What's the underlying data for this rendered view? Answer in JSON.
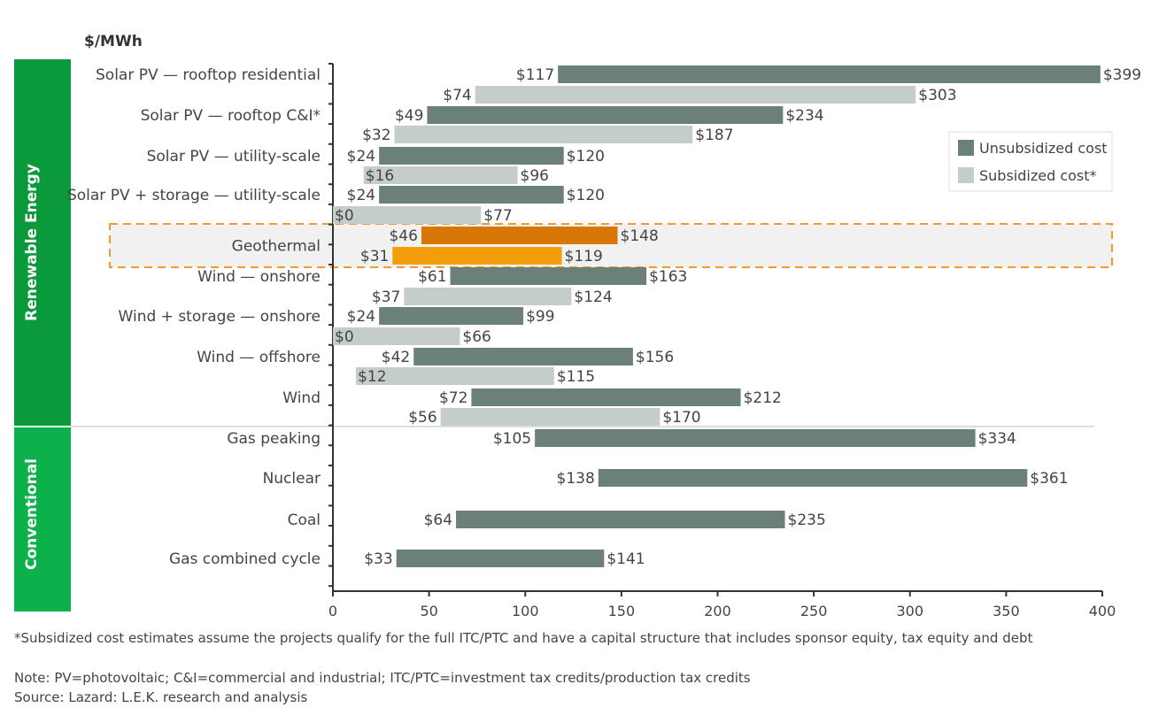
{
  "chart_data": {
    "type": "bar",
    "orientation": "horizontal-range",
    "ylabel": "$/MWh",
    "xlim": [
      0,
      400
    ],
    "xticks": [
      0,
      50,
      100,
      150,
      200,
      250,
      300,
      350,
      400
    ],
    "grid": false,
    "legend_placement": "top-right",
    "groups": [
      {
        "label": "Renewable Energy",
        "color": "#0a9a3c"
      },
      {
        "label": "Conventional",
        "color": "#0db14b"
      }
    ],
    "series": [
      {
        "name": "Unsubsidized cost",
        "color": "#6b8178"
      },
      {
        "name": "Subsidized cost*",
        "color": "#c4cdca"
      }
    ],
    "highlight_colors": {
      "unsubsidized": "#d97706",
      "subsidized": "#f59e0b",
      "box": "#f39a2b"
    },
    "categories": [
      {
        "label": "Solar PV — rooftop residential",
        "group": 0,
        "unsubsidized": [
          117,
          399
        ],
        "subsidized": [
          74,
          303
        ]
      },
      {
        "label": "Solar PV — rooftop C&I*",
        "group": 0,
        "unsubsidized": [
          49,
          234
        ],
        "subsidized": [
          32,
          187
        ]
      },
      {
        "label": "Solar PV — utility-scale",
        "group": 0,
        "unsubsidized": [
          24,
          120
        ],
        "subsidized": [
          16,
          96
        ]
      },
      {
        "label": "Solar PV + storage — utility-scale",
        "group": 0,
        "unsubsidized": [
          24,
          120
        ],
        "subsidized": [
          0,
          77
        ]
      },
      {
        "label": "Geothermal",
        "group": 0,
        "highlight": true,
        "unsubsidized": [
          46,
          148
        ],
        "subsidized": [
          31,
          119
        ]
      },
      {
        "label": "Wind — onshore",
        "group": 0,
        "unsubsidized": [
          61,
          163
        ],
        "subsidized": [
          37,
          124
        ]
      },
      {
        "label": "Wind + storage — onshore",
        "group": 0,
        "unsubsidized": [
          24,
          99
        ],
        "subsidized": [
          0,
          66
        ]
      },
      {
        "label": "Wind — offshore",
        "group": 0,
        "unsubsidized": [
          42,
          156
        ],
        "subsidized": [
          12,
          115
        ]
      },
      {
        "label": "Wind",
        "group": 0,
        "unsubsidized": [
          72,
          212
        ],
        "subsidized": [
          56,
          170
        ]
      },
      {
        "label": "Gas peaking",
        "group": 1,
        "unsubsidized": [
          105,
          334
        ]
      },
      {
        "label": "Nuclear",
        "group": 1,
        "unsubsidized": [
          138,
          361
        ]
      },
      {
        "label": "Coal",
        "group": 1,
        "unsubsidized": [
          64,
          235
        ]
      },
      {
        "label": "Gas combined cycle",
        "group": 1,
        "unsubsidized": [
          33,
          141
        ]
      }
    ]
  },
  "footnotes": [
    "*Subsidized cost estimates assume the projects qualify for the full ITC/PTC and have a capital structure that includes sponsor equity, tax equity and debt",
    "Note: PV=photovoltaic; C&I=commercial and industrial; ITC/PTC=investment tax credits/production tax credits",
    "Source: Lazard: L.E.K. research and analysis"
  ]
}
